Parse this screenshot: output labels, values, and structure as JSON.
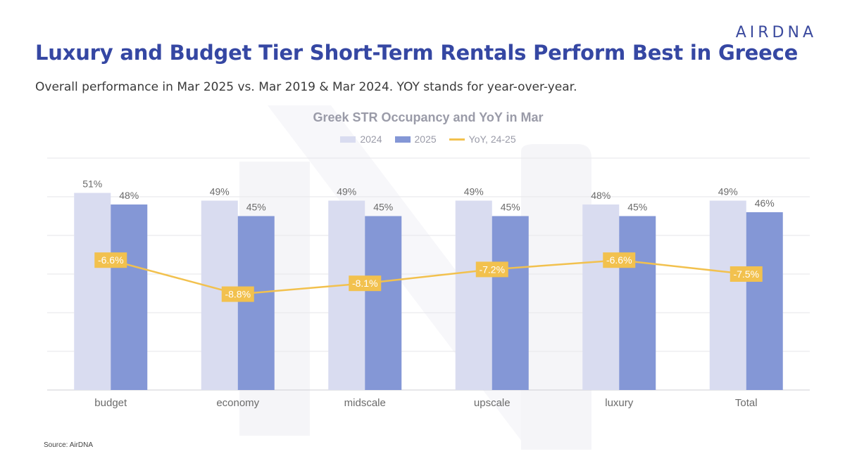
{
  "header": {
    "logo_text": "AIRDNA",
    "title": "Luxury and Budget Tier Short-Term Rentals Perform Best in Greece",
    "subtitle": "Overall performance in Mar 2025 vs. Mar 2019 & Mar 2024. YOY stands for year-over-year."
  },
  "footer": {
    "source": "Source: AirDNA"
  },
  "colors": {
    "title": "#3547a3",
    "bar_2024": "#d9dcf0",
    "bar_2025": "#8497d6",
    "yoy_line": "#f2c14e",
    "yoy_label_bg": "#f2c14e",
    "grid": "#e6e6ea",
    "axis_text": "#6b6b6b"
  },
  "chart_data": {
    "type": "bar",
    "title": "Greek STR Occupancy and YoY in Mar",
    "categories": [
      "budget",
      "economy",
      "midscale",
      "upscale",
      "luxury",
      "Total"
    ],
    "series": [
      {
        "name": "2024",
        "values": [
          51,
          49,
          49,
          49,
          48,
          49
        ],
        "labels": [
          "51%",
          "49%",
          "49%",
          "49%",
          "48%",
          "49%"
        ]
      },
      {
        "name": "2025",
        "values": [
          48,
          45,
          45,
          45,
          45,
          46
        ],
        "labels": [
          "48%",
          "45%",
          "45%",
          "45%",
          "45%",
          "46%"
        ]
      }
    ],
    "yoy": {
      "name": "YoY, 24-25",
      "type": "line",
      "values": [
        -6.6,
        -8.8,
        -8.1,
        -7.2,
        -6.6,
        -7.5
      ],
      "labels": [
        "-6.6%",
        "-8.8%",
        "-8.1%",
        "-7.2%",
        "-6.6%",
        "-7.5%"
      ]
    },
    "ylim": [
      0,
      60
    ],
    "yoy_ylim": [
      -15,
      0
    ],
    "grid": true,
    "legend": "top-center"
  }
}
